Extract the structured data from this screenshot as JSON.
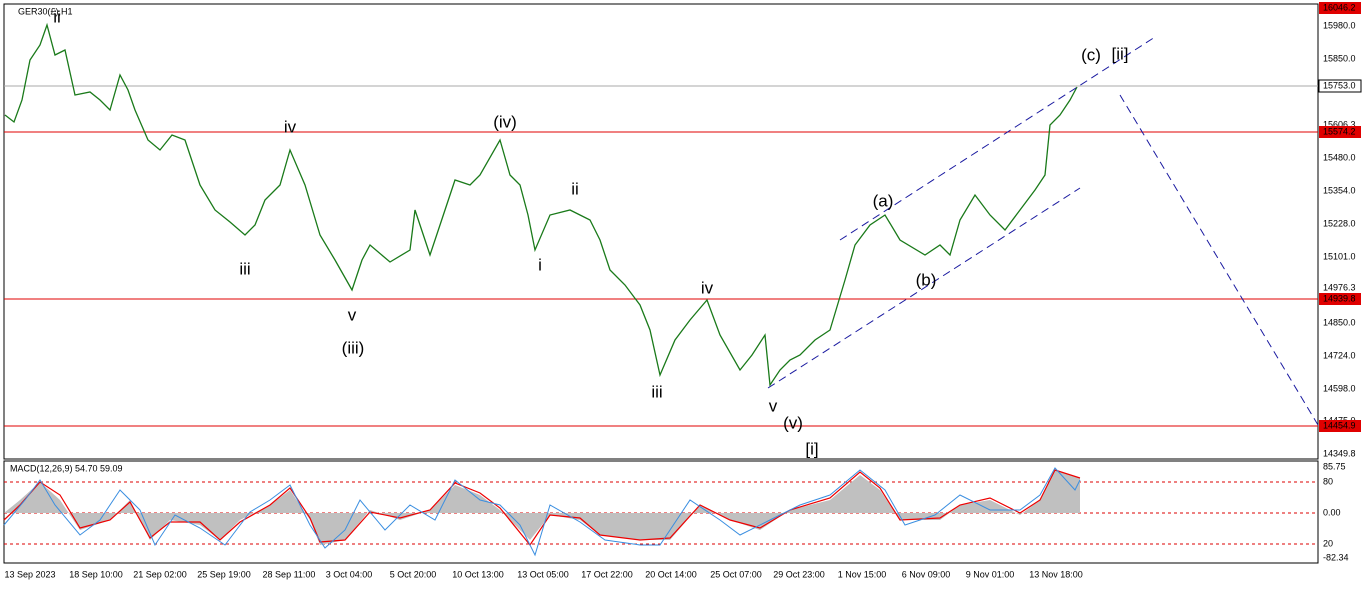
{
  "header": {
    "symbol": "GER30(£),H1"
  },
  "price_axis": [
    "15980.0",
    "15850.0",
    "15606.3",
    "15480.0",
    "15354.0",
    "15228.0",
    "15101.0",
    "14976.3",
    "14850.0",
    "14724.0",
    "14598.0",
    "14475.0",
    "14349.8"
  ],
  "price_levels": [
    "16046.2",
    "15753.0",
    "15574.2",
    "14939.8",
    "14454.9"
  ],
  "time_axis": [
    "13 Sep 2023",
    "18 Sep 10:00",
    "21 Sep 02:00",
    "25 Sep 19:00",
    "28 Sep 11:00",
    "3 Oct 04:00",
    "5 Oct 20:00",
    "10 Oct 13:00",
    "13 Oct 05:00",
    "17 Oct 22:00",
    "20 Oct 14:00",
    "25 Oct 07:00",
    "29 Oct 23:00",
    "1 Nov 15:00",
    "6 Nov 09:00",
    "9 Nov 01:00",
    "13 Nov 18:00"
  ],
  "wave_labels": [
    "ii",
    "iv",
    "iii",
    "v",
    "(iii)",
    "(iv)",
    "ii",
    "i",
    "iv",
    "iii",
    "v",
    "(v)",
    "[i]",
    "(a)",
    "(b)",
    "(c)",
    "[ii]"
  ],
  "macd": {
    "label": "MACD(12,26,9) 54.70 59.09",
    "axis": [
      "85.75",
      "80",
      "0.00",
      "20",
      "-82.34"
    ]
  }
}
